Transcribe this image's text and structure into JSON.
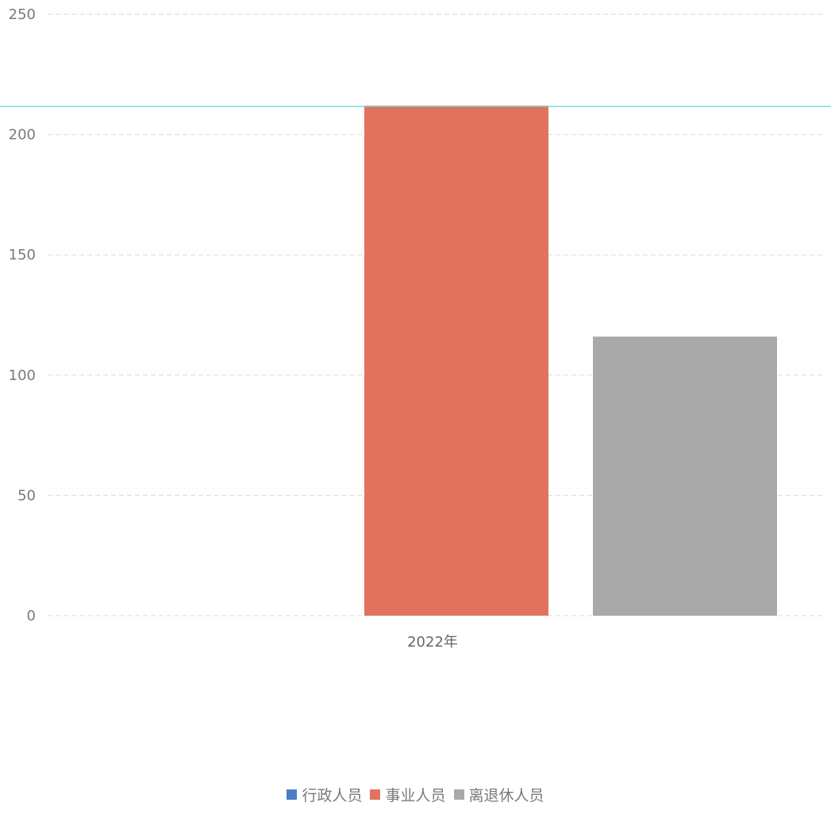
{
  "chart_data": {
    "type": "bar",
    "categories": [
      "2022年"
    ],
    "series": [
      {
        "name": "行政人员",
        "values": [
          0
        ],
        "color": "#4a7fc1"
      },
      {
        "name": "事业人员",
        "values": [
          212
        ],
        "color": "#e2725b"
      },
      {
        "name": "离退休人员",
        "values": [
          116
        ],
        "color": "#a9a9a9"
      }
    ],
    "yticks": [
      "0",
      "50",
      "100",
      "150",
      "200",
      "250"
    ],
    "ylim": [
      0,
      250
    ],
    "grid": true,
    "legend_position": "bottom",
    "reference_line": {
      "value": 212,
      "color": "#6fd0dc"
    }
  }
}
